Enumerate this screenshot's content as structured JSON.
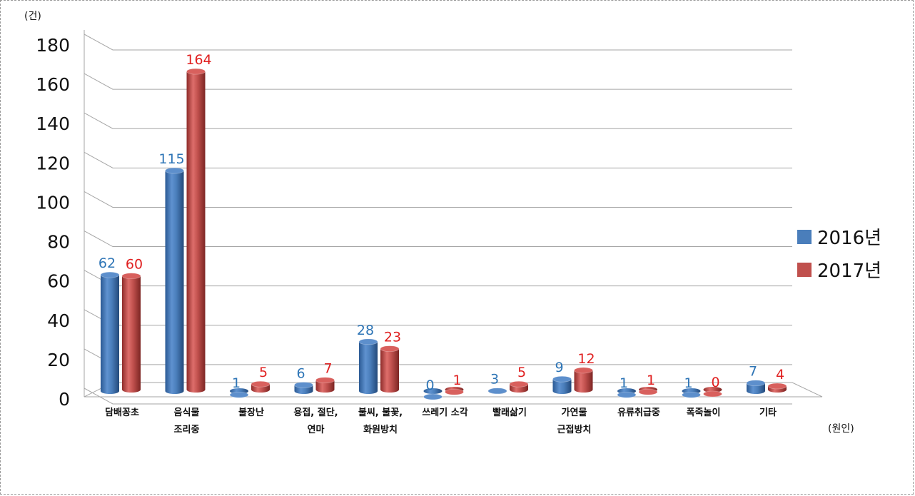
{
  "chart_data": {
    "type": "bar",
    "y_unit": "(건)",
    "x_unit": "(원인)",
    "ylim": [
      0,
      180
    ],
    "yticks": [
      0,
      20,
      40,
      60,
      80,
      100,
      120,
      140,
      160,
      180
    ],
    "grid": true,
    "legend_position": "right",
    "categories": [
      [
        "담배꽁초"
      ],
      [
        "음식물",
        "조리중"
      ],
      [
        "불장난"
      ],
      [
        "용접, 절단,",
        "연마"
      ],
      [
        "불씨, 불꽃,",
        "화원방치"
      ],
      [
        "쓰레기 소각"
      ],
      [
        "빨래삶기"
      ],
      [
        "가연물",
        "근접방치"
      ],
      [
        "유류취급중"
      ],
      [
        "폭죽놀이"
      ],
      [
        "기타"
      ]
    ],
    "series": [
      {
        "name": "2016년",
        "color": "#4a7ebb",
        "label_color": "#2e75b6",
        "values": [
          62,
          115,
          1,
          6,
          28,
          0,
          3,
          9,
          1,
          1,
          7
        ]
      },
      {
        "name": "2017년",
        "color": "#c0504d",
        "label_color": "#e02020",
        "values": [
          60,
          164,
          5,
          7,
          23,
          1,
          5,
          12,
          1,
          0,
          4
        ]
      }
    ]
  }
}
